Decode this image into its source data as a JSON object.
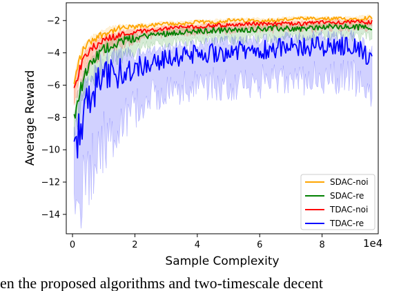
{
  "chart_data": {
    "type": "line",
    "xlabel": "Sample Complexity",
    "ylabel": "Average Reward",
    "x_multiplier_label": "1e4",
    "xlim": [
      -0.2,
      9.8
    ],
    "ylim": [
      -15.2,
      -0.9
    ],
    "x_ticks": [
      0,
      2,
      4,
      6,
      8
    ],
    "x_tick_labels": [
      "0",
      "2",
      "4",
      "6",
      "8"
    ],
    "y_ticks": [
      -14,
      -12,
      -10,
      -8,
      -6,
      -4,
      -2
    ],
    "y_tick_labels": [
      "−14",
      "−12",
      "−10",
      "−8",
      "−6",
      "−4",
      "−2"
    ],
    "grid": false,
    "legend_position": "lower-right",
    "series": [
      {
        "name": "SDAC-noi",
        "color": "#ffa500",
        "x": [
          0.05,
          0.2,
          0.4,
          0.7,
          1.0,
          1.5,
          2.0,
          2.5,
          3.0,
          3.5,
          4.0,
          4.5,
          5.0,
          5.5,
          6.0,
          6.5,
          7.0,
          7.5,
          8.0,
          8.5,
          9.0,
          9.6
        ],
        "values": [
          -6.0,
          -4.5,
          -3.6,
          -3.1,
          -2.8,
          -2.5,
          -2.4,
          -2.3,
          -2.2,
          -2.2,
          -2.1,
          -2.1,
          -2.0,
          -2.0,
          -2.0,
          -2.0,
          -1.9,
          -1.9,
          -1.9,
          -1.9,
          -1.9,
          -1.8
        ],
        "band": 0.8
      },
      {
        "name": "SDAC-re",
        "color": "#008000",
        "x": [
          0.05,
          0.2,
          0.4,
          0.7,
          1.0,
          1.5,
          2.0,
          2.5,
          3.0,
          3.5,
          4.0,
          4.5,
          5.0,
          5.5,
          6.0,
          6.5,
          7.0,
          7.5,
          8.0,
          8.5,
          9.0,
          9.6
        ],
        "values": [
          -8.0,
          -6.6,
          -5.4,
          -4.4,
          -3.8,
          -3.3,
          -3.1,
          -2.9,
          -2.8,
          -2.7,
          -2.7,
          -2.6,
          -2.6,
          -2.6,
          -2.5,
          -2.5,
          -2.5,
          -2.5,
          -2.4,
          -2.4,
          -2.4,
          -2.4
        ],
        "band": 1.2
      },
      {
        "name": "TDAC-noi",
        "color": "#ff0000",
        "x": [
          0.05,
          0.2,
          0.4,
          0.7,
          1.0,
          1.5,
          2.0,
          2.5,
          3.0,
          3.5,
          4.0,
          4.5,
          5.0,
          5.5,
          6.0,
          6.5,
          7.0,
          7.5,
          8.0,
          8.5,
          9.0,
          9.6
        ],
        "values": [
          -6.2,
          -5.2,
          -4.2,
          -3.6,
          -3.2,
          -2.9,
          -2.7,
          -2.6,
          -2.5,
          -2.4,
          -2.4,
          -2.3,
          -2.3,
          -2.2,
          -2.2,
          -2.2,
          -2.2,
          -2.2,
          -2.1,
          -2.1,
          -2.1,
          -2.1
        ],
        "band": 0.8
      },
      {
        "name": "TDAC-re",
        "color": "#0000ff",
        "x": [
          0.05,
          0.2,
          0.4,
          0.7,
          1.0,
          1.5,
          2.0,
          2.5,
          3.0,
          3.5,
          4.0,
          4.5,
          5.0,
          5.5,
          6.0,
          6.5,
          7.0,
          7.5,
          8.0,
          8.5,
          9.0,
          9.6
        ],
        "values": [
          -10.5,
          -9.0,
          -7.5,
          -6.3,
          -5.7,
          -5.2,
          -4.9,
          -4.6,
          -4.4,
          -4.2,
          -4.1,
          -4.0,
          -3.9,
          -3.9,
          -3.8,
          -3.7,
          -3.7,
          -3.6,
          -3.6,
          -3.6,
          -3.5,
          -4.5
        ],
        "band": 4.0
      }
    ]
  },
  "caption_snippet": "en the proposed algorithms and two-timescale decent"
}
